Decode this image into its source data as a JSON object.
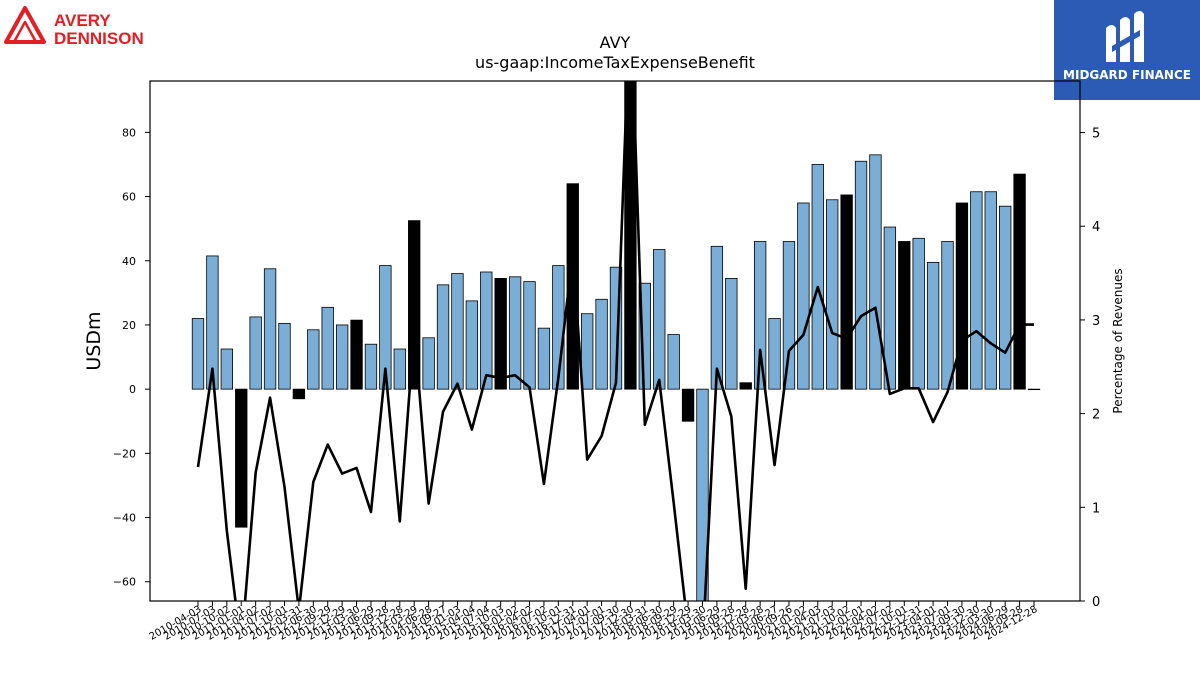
{
  "branding": {
    "left_logo_line1": "AVERY",
    "left_logo_line2": "DENNISON",
    "right_logo_text": "MIDGARD FINANCE",
    "left_logo_color": "#e31e24",
    "right_logo_bg": "#2b5bb5"
  },
  "chart_data": {
    "type": "bar",
    "title": "AVY",
    "subtitle": "us-gaap:IncomeTaxExpenseBenefit",
    "ylabel": "USDm",
    "y2label": "Percentage of Revenues",
    "ylim": [
      -66,
      96
    ],
    "y2lim": [
      0,
      5.55
    ],
    "yticks": [
      -60,
      -40,
      -20,
      0,
      20,
      40,
      60,
      80
    ],
    "y2ticks": [
      0,
      1,
      2,
      3,
      4,
      5
    ],
    "colors": {
      "bar": "#7aaed6",
      "bar_highlight": "#000000",
      "line": "#000000"
    },
    "categories": [
      "2010-04-03",
      "2010-07-03",
      "2010-10-02",
      "2011-01-01",
      "2011-04-02",
      "2011-07-02",
      "2011-10-01",
      "2012-03-31",
      "2012-06-30",
      "2012-09-29",
      "2012-12-29",
      "2013-03-30",
      "2013-06-29",
      "2013-09-28",
      "2013-12-28",
      "2014-03-29",
      "2014-06-28",
      "2014-09-27",
      "2015-01-03",
      "2015-04-04",
      "2015-07-04",
      "2015-10-03",
      "2016-01-02",
      "2016-04-02",
      "2016-07-02",
      "2016-10-01",
      "2016-12-31",
      "2017-04-01",
      "2017-07-01",
      "2017-09-30",
      "2017-12-30",
      "2018-03-31",
      "2018-06-30",
      "2018-09-29",
      "2018-12-29",
      "2019-03-30",
      "2019-06-29",
      "2019-09-28",
      "2019-12-28",
      "2020-03-28",
      "2020-06-27",
      "2020-09-26",
      "2021-01-02",
      "2021-04-03",
      "2021-07-03",
      "2021-10-02",
      "2022-01-01",
      "2022-04-02",
      "2022-07-02",
      "2022-10-01",
      "2022-12-31",
      "2023-04-01",
      "2023-07-01",
      "2023-09-30",
      "2023-12-30",
      "2024-03-30",
      "2024-06-29",
      "2024-09-28",
      "2024-12-28"
    ],
    "tick_labels": [
      "2010-04-03",
      "2010-07-03",
      "2010-10-02",
      "2011-01-01",
      "2011-04-02",
      "2011-07-02",
      "2011-10-01",
      "2012-03-31",
      "2012-06-30",
      "2012-09-29",
      "2012-12-29",
      "2013-03-30",
      "2013-06-29",
      "2013-09-28",
      "2013-12-28",
      "2014-03-29",
      "2014-06-28",
      "2014-09-27",
      "2015-01-03",
      "2015-04-04",
      "2015-07-04",
      "2015-10-03",
      "2016-01-02",
      "2016-04-02",
      "2016-07-02",
      "2016-10-01",
      "2016-12-31",
      "2017-04-01",
      "2017-07-01",
      "2017-09-30",
      "2017-12-30",
      "2018-03-31",
      "2018-06-30",
      "2018-09-29",
      "2018-12-29",
      "2019-03-30",
      "2019-06-29",
      "2019-09-28",
      "2019-12-28",
      "2020-03-28",
      "2020-06-27",
      "2020-09-26",
      "2021-01-02",
      "2021-04-03",
      "2021-07-03",
      "2021-10-02",
      "2022-01-01",
      "2022-04-02",
      "2022-07-02",
      "2022-10-01",
      "2022-12-31",
      "2023-04-01",
      "2023-07-01",
      "2023-09-30",
      "2023-12-30",
      "2024-03-30",
      "2024-06-29",
      "2024-09-28",
      "2024-12-28"
    ],
    "series": [
      {
        "type": "bar",
        "axis": "left",
        "values": [
          22,
          41.5,
          12.5,
          -43,
          22.5,
          37.5,
          20.5,
          -3,
          18.5,
          25.5,
          20,
          21.5,
          14,
          38.5,
          12.5,
          52.5,
          16,
          32.5,
          36,
          27.5,
          36.5,
          34.5,
          35,
          33.5,
          19,
          38.5,
          64,
          23.5,
          28,
          38,
          97,
          33,
          43.5,
          17,
          -10,
          -67,
          44.5,
          34.5,
          2,
          46,
          22,
          46,
          58,
          70,
          59,
          60.5,
          71,
          73,
          50.5,
          46,
          47,
          39.5,
          46,
          58,
          61.5,
          61.5,
          57,
          67,
          0
        ],
        "highlight": [
          false,
          false,
          false,
          true,
          false,
          false,
          false,
          true,
          false,
          false,
          false,
          true,
          false,
          false,
          false,
          true,
          false,
          false,
          false,
          false,
          false,
          true,
          false,
          false,
          false,
          false,
          true,
          false,
          false,
          false,
          true,
          false,
          false,
          false,
          true,
          false,
          false,
          false,
          true,
          false,
          false,
          false,
          false,
          false,
          false,
          true,
          false,
          false,
          false,
          true,
          false,
          false,
          false,
          true,
          false,
          false,
          false,
          true,
          false
        ]
      },
      {
        "type": "line",
        "axis": "right",
        "values": [
          1.43,
          2.48,
          0.75,
          -0.5,
          1.37,
          2.17,
          1.22,
          -0.1,
          1.27,
          1.67,
          1.36,
          1.42,
          0.95,
          2.48,
          0.85,
          2.9,
          1.04,
          2.02,
          2.32,
          1.83,
          2.41,
          2.38,
          2.41,
          2.28,
          1.25,
          2.38,
          3.72,
          1.51,
          1.76,
          2.33,
          6.5,
          1.88,
          2.36,
          1.05,
          -0.3,
          -0.5,
          2.48,
          1.97,
          0.13,
          2.68,
          1.45,
          2.67,
          2.84,
          3.35,
          2.86,
          2.8,
          3.04,
          3.13,
          2.21,
          2.27,
          2.27,
          1.91,
          2.23,
          2.78,
          2.88,
          2.75,
          2.65,
          2.95,
          2.95
        ]
      }
    ]
  }
}
